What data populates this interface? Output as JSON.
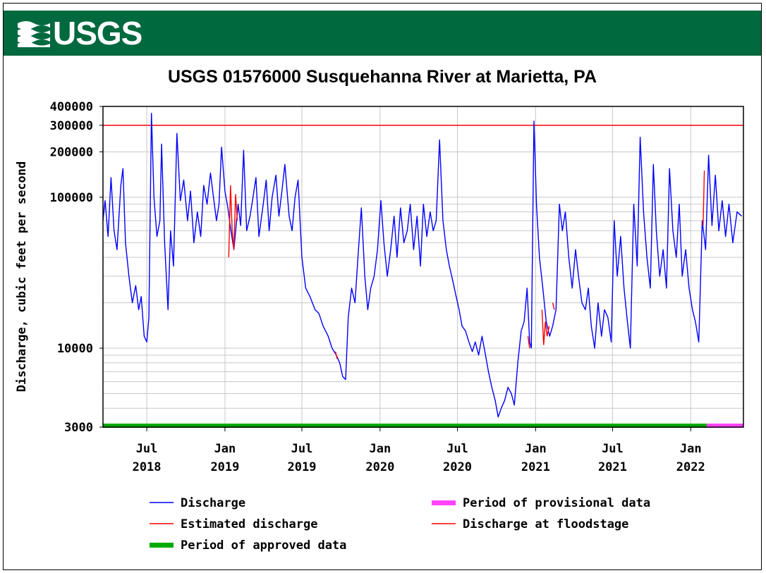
{
  "brand": {
    "logo_text": "USGS",
    "banner_color": "#00693e"
  },
  "chart_data": {
    "type": "line",
    "title": "USGS 01576000 Susquehanna River at Marietta, PA",
    "ylabel": "Discharge, cubic feet per second",
    "xlabel": "",
    "yscale": "log",
    "ylim": [
      3000,
      400000
    ],
    "xlim": [
      "2018-03-20",
      "2022-05-05"
    ],
    "y_tick_labels": [
      "400000",
      "300000",
      "200000",
      "100000",
      "10000",
      "3000"
    ],
    "y_ticks": [
      400000,
      300000,
      200000,
      100000,
      10000,
      3000
    ],
    "x_ticks": [
      {
        "date": "2018-07-01",
        "month": "Jul",
        "year": "2018"
      },
      {
        "date": "2019-01-01",
        "month": "Jan",
        "year": "2019"
      },
      {
        "date": "2019-07-01",
        "month": "Jul",
        "year": "2019"
      },
      {
        "date": "2020-01-01",
        "month": "Jan",
        "year": "2020"
      },
      {
        "date": "2020-07-01",
        "month": "Jul",
        "year": "2020"
      },
      {
        "date": "2021-01-01",
        "month": "Jan",
        "year": "2021"
      },
      {
        "date": "2021-07-01",
        "month": "Jul",
        "year": "2021"
      },
      {
        "date": "2022-01-01",
        "month": "Jan",
        "year": "2022"
      }
    ],
    "grid": true,
    "floodstage": 300000,
    "colors": {
      "discharge": "#0000ff",
      "estimated": "#ff0000",
      "floodstage": "#ff0000",
      "approved": "#00aa00",
      "provisional": "#ff44ff"
    },
    "series": [
      {
        "name": "Discharge",
        "points": [
          [
            "2018-03-20",
            70000
          ],
          [
            "2018-03-25",
            95000
          ],
          [
            "2018-04-01",
            55000
          ],
          [
            "2018-04-08",
            135000
          ],
          [
            "2018-04-15",
            60000
          ],
          [
            "2018-04-22",
            45000
          ],
          [
            "2018-05-01",
            120000
          ],
          [
            "2018-05-06",
            155000
          ],
          [
            "2018-05-12",
            50000
          ],
          [
            "2018-05-20",
            30000
          ],
          [
            "2018-05-28",
            20000
          ],
          [
            "2018-06-05",
            26000
          ],
          [
            "2018-06-12",
            18000
          ],
          [
            "2018-06-18",
            22000
          ],
          [
            "2018-06-25",
            12000
          ],
          [
            "2018-07-01",
            11000
          ],
          [
            "2018-07-06",
            16000
          ],
          [
            "2018-07-12",
            360000
          ],
          [
            "2018-07-18",
            100000
          ],
          [
            "2018-07-25",
            55000
          ],
          [
            "2018-08-01",
            70000
          ],
          [
            "2018-08-05",
            225000
          ],
          [
            "2018-08-12",
            50000
          ],
          [
            "2018-08-20",
            18000
          ],
          [
            "2018-08-26",
            60000
          ],
          [
            "2018-09-02",
            35000
          ],
          [
            "2018-09-10",
            265000
          ],
          [
            "2018-09-18",
            95000
          ],
          [
            "2018-09-26",
            130000
          ],
          [
            "2018-10-05",
            70000
          ],
          [
            "2018-10-12",
            110000
          ],
          [
            "2018-10-20",
            50000
          ],
          [
            "2018-10-28",
            80000
          ],
          [
            "2018-11-05",
            55000
          ],
          [
            "2018-11-12",
            120000
          ],
          [
            "2018-11-20",
            90000
          ],
          [
            "2018-11-28",
            145000
          ],
          [
            "2018-12-05",
            100000
          ],
          [
            "2018-12-12",
            70000
          ],
          [
            "2018-12-18",
            90000
          ],
          [
            "2018-12-24",
            215000
          ],
          [
            "2019-01-01",
            110000
          ],
          [
            "2019-01-08",
            85000
          ],
          [
            "2019-01-15",
            60000
          ],
          [
            "2019-01-22",
            45000
          ],
          [
            "2019-02-01",
            90000
          ],
          [
            "2019-02-07",
            65000
          ],
          [
            "2019-02-14",
            205000
          ],
          [
            "2019-02-21",
            60000
          ],
          [
            "2019-03-01",
            75000
          ],
          [
            "2019-03-08",
            100000
          ],
          [
            "2019-03-15",
            135000
          ],
          [
            "2019-03-22",
            55000
          ],
          [
            "2019-04-01",
            90000
          ],
          [
            "2019-04-08",
            130000
          ],
          [
            "2019-04-15",
            60000
          ],
          [
            "2019-04-22",
            100000
          ],
          [
            "2019-05-01",
            140000
          ],
          [
            "2019-05-08",
            75000
          ],
          [
            "2019-05-15",
            110000
          ],
          [
            "2019-05-22",
            165000
          ],
          [
            "2019-06-01",
            75000
          ],
          [
            "2019-06-08",
            60000
          ],
          [
            "2019-06-15",
            100000
          ],
          [
            "2019-06-22",
            130000
          ],
          [
            "2019-07-01",
            40000
          ],
          [
            "2019-07-10",
            25000
          ],
          [
            "2019-07-20",
            22000
          ],
          [
            "2019-08-01",
            18000
          ],
          [
            "2019-08-10",
            17000
          ],
          [
            "2019-08-20",
            14000
          ],
          [
            "2019-09-01",
            12000
          ],
          [
            "2019-09-10",
            10000
          ],
          [
            "2019-09-20",
            9000
          ],
          [
            "2019-09-28",
            8000
          ],
          [
            "2019-10-05",
            6500
          ],
          [
            "2019-10-12",
            6200
          ],
          [
            "2019-10-18",
            16000
          ],
          [
            "2019-10-26",
            25000
          ],
          [
            "2019-11-03",
            20000
          ],
          [
            "2019-11-10",
            40000
          ],
          [
            "2019-11-18",
            85000
          ],
          [
            "2019-11-26",
            30000
          ],
          [
            "2019-12-03",
            18000
          ],
          [
            "2019-12-10",
            25000
          ],
          [
            "2019-12-18",
            30000
          ],
          [
            "2019-12-26",
            45000
          ],
          [
            "2020-01-03",
            95000
          ],
          [
            "2020-01-10",
            50000
          ],
          [
            "2020-01-18",
            30000
          ],
          [
            "2020-01-26",
            45000
          ],
          [
            "2020-02-03",
            75000
          ],
          [
            "2020-02-10",
            40000
          ],
          [
            "2020-02-18",
            85000
          ],
          [
            "2020-02-26",
            50000
          ],
          [
            "2020-03-05",
            60000
          ],
          [
            "2020-03-12",
            90000
          ],
          [
            "2020-03-20",
            45000
          ],
          [
            "2020-03-28",
            75000
          ],
          [
            "2020-04-05",
            35000
          ],
          [
            "2020-04-12",
            90000
          ],
          [
            "2020-04-20",
            55000
          ],
          [
            "2020-04-28",
            80000
          ],
          [
            "2020-05-05",
            60000
          ],
          [
            "2020-05-12",
            70000
          ],
          [
            "2020-05-20",
            240000
          ],
          [
            "2020-05-28",
            70000
          ],
          [
            "2020-06-05",
            45000
          ],
          [
            "2020-06-12",
            35000
          ],
          [
            "2020-06-20",
            28000
          ],
          [
            "2020-06-28",
            22000
          ],
          [
            "2020-07-05",
            18000
          ],
          [
            "2020-07-12",
            14000
          ],
          [
            "2020-07-20",
            13000
          ],
          [
            "2020-07-28",
            11000
          ],
          [
            "2020-08-05",
            9500
          ],
          [
            "2020-08-12",
            11000
          ],
          [
            "2020-08-20",
            9000
          ],
          [
            "2020-08-28",
            12000
          ],
          [
            "2020-09-05",
            9000
          ],
          [
            "2020-09-12",
            7000
          ],
          [
            "2020-09-20",
            5500
          ],
          [
            "2020-09-28",
            4500
          ],
          [
            "2020-10-05",
            3500
          ],
          [
            "2020-10-12",
            4000
          ],
          [
            "2020-10-20",
            4500
          ],
          [
            "2020-10-28",
            5500
          ],
          [
            "2020-11-05",
            5000
          ],
          [
            "2020-11-12",
            4200
          ],
          [
            "2020-11-20",
            8000
          ],
          [
            "2020-11-28",
            13000
          ],
          [
            "2020-12-05",
            15000
          ],
          [
            "2020-12-12",
            25000
          ],
          [
            "2020-12-18",
            11000
          ],
          [
            "2020-12-22",
            10000
          ],
          [
            "2020-12-28",
            320000
          ],
          [
            "2021-01-03",
            90000
          ],
          [
            "2021-01-10",
            40000
          ],
          [
            "2021-01-18",
            25000
          ],
          [
            "2021-01-26",
            15000
          ],
          [
            "2021-02-03",
            12000
          ],
          [
            "2021-02-10",
            14000
          ],
          [
            "2021-02-18",
            18000
          ],
          [
            "2021-02-26",
            90000
          ],
          [
            "2021-03-05",
            60000
          ],
          [
            "2021-03-12",
            80000
          ],
          [
            "2021-03-20",
            40000
          ],
          [
            "2021-03-28",
            25000
          ],
          [
            "2021-04-05",
            45000
          ],
          [
            "2021-04-12",
            30000
          ],
          [
            "2021-04-20",
            20000
          ],
          [
            "2021-04-28",
            18000
          ],
          [
            "2021-05-05",
            25000
          ],
          [
            "2021-05-12",
            14000
          ],
          [
            "2021-05-20",
            10000
          ],
          [
            "2021-05-28",
            20000
          ],
          [
            "2021-06-05",
            12000
          ],
          [
            "2021-06-12",
            18000
          ],
          [
            "2021-06-20",
            16000
          ],
          [
            "2021-06-28",
            11000
          ],
          [
            "2021-07-05",
            70000
          ],
          [
            "2021-07-12",
            30000
          ],
          [
            "2021-07-20",
            55000
          ],
          [
            "2021-07-28",
            25000
          ],
          [
            "2021-08-05",
            15000
          ],
          [
            "2021-08-12",
            10000
          ],
          [
            "2021-08-20",
            90000
          ],
          [
            "2021-08-28",
            35000
          ],
          [
            "2021-09-04",
            250000
          ],
          [
            "2021-09-12",
            80000
          ],
          [
            "2021-09-20",
            40000
          ],
          [
            "2021-09-28",
            25000
          ],
          [
            "2021-10-05",
            165000
          ],
          [
            "2021-10-12",
            60000
          ],
          [
            "2021-10-20",
            30000
          ],
          [
            "2021-10-28",
            45000
          ],
          [
            "2021-11-05",
            25000
          ],
          [
            "2021-11-12",
            155000
          ],
          [
            "2021-11-20",
            60000
          ],
          [
            "2021-11-28",
            40000
          ],
          [
            "2021-12-05",
            90000
          ],
          [
            "2021-12-12",
            30000
          ],
          [
            "2021-12-20",
            45000
          ],
          [
            "2021-12-28",
            25000
          ],
          [
            "2022-01-05",
            18000
          ],
          [
            "2022-01-12",
            15000
          ],
          [
            "2022-01-20",
            11000
          ],
          [
            "2022-01-28",
            70000
          ],
          [
            "2022-02-05",
            45000
          ],
          [
            "2022-02-12",
            190000
          ],
          [
            "2022-02-20",
            65000
          ],
          [
            "2022-02-28",
            140000
          ],
          [
            "2022-03-08",
            60000
          ],
          [
            "2022-03-16",
            95000
          ],
          [
            "2022-03-24",
            55000
          ],
          [
            "2022-04-01",
            90000
          ],
          [
            "2022-04-10",
            50000
          ],
          [
            "2022-04-20",
            80000
          ],
          [
            "2022-05-01",
            75000
          ]
        ]
      },
      {
        "name": "Estimated discharge",
        "segments": [
          [
            [
              "2019-01-10",
              40000
            ],
            [
              "2019-01-14",
              120000
            ],
            [
              "2019-01-18",
              60000
            ],
            [
              "2019-01-22",
              45000
            ],
            [
              "2019-01-26",
              105000
            ],
            [
              "2019-01-30",
              70000
            ]
          ],
          [
            [
              "2019-09-18",
              9500
            ],
            [
              "2019-09-22",
              8500
            ]
          ],
          [
            [
              "2020-12-14",
              12000
            ],
            [
              "2020-12-18",
              10000
            ]
          ],
          [
            [
              "2021-01-16",
              18000
            ],
            [
              "2021-01-20",
              10500
            ],
            [
              "2021-01-24",
              15000
            ],
            [
              "2021-01-28",
              12000
            ],
            [
              "2021-02-02",
              14000
            ]
          ],
          [
            [
              "2021-02-10",
              20000
            ],
            [
              "2021-02-14",
              18000
            ]
          ],
          [
            [
              "2022-01-30",
              65000
            ],
            [
              "2022-02-02",
              150000
            ]
          ]
        ]
      },
      {
        "name": "Discharge at floodstage"
      },
      {
        "name": "Period of approved data",
        "range": [
          "2018-03-20",
          "2022-02-08"
        ]
      },
      {
        "name": "Period of provisional data",
        "range": [
          "2022-02-08",
          "2022-05-05"
        ]
      }
    ],
    "legend": [
      {
        "name": "Discharge",
        "color": "#0000ff",
        "style": "line"
      },
      {
        "name": "Estimated discharge",
        "color": "#ff0000",
        "style": "line"
      },
      {
        "name": "Period of approved data",
        "color": "#00aa00",
        "style": "bar"
      },
      {
        "name": "Period of provisional data",
        "color": "#ff44ff",
        "style": "bar"
      },
      {
        "name": "Discharge at floodstage",
        "color": "#ff0000",
        "style": "line"
      }
    ]
  }
}
